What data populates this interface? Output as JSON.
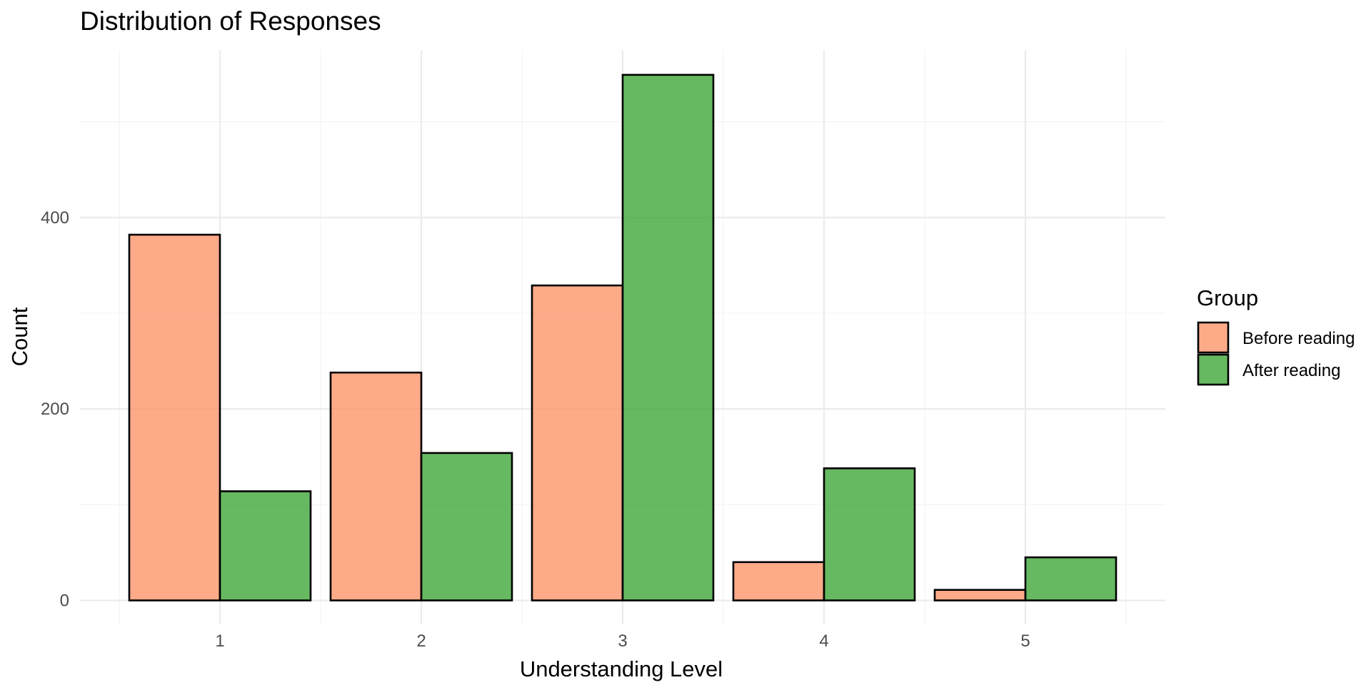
{
  "chart_data": {
    "type": "bar",
    "title": "Distribution of Responses",
    "xlabel": "Understanding Level",
    "ylabel": "Count",
    "categories": [
      "1",
      "2",
      "3",
      "4",
      "5"
    ],
    "series": [
      {
        "name": "Before reading",
        "color": "#FC8D62",
        "values": [
          382,
          238,
          329,
          40,
          11
        ]
      },
      {
        "name": "After reading",
        "color": "#33A02C",
        "values": [
          114,
          154,
          549,
          138,
          45
        ]
      }
    ],
    "bar_opacity": 0.75,
    "ylim": [
      -25,
      575
    ],
    "y_ticks": [
      0,
      200,
      400
    ],
    "y_minor_ticks": [
      100,
      300,
      500
    ],
    "grid": true,
    "legend": {
      "title": "Group",
      "position": "right"
    }
  }
}
